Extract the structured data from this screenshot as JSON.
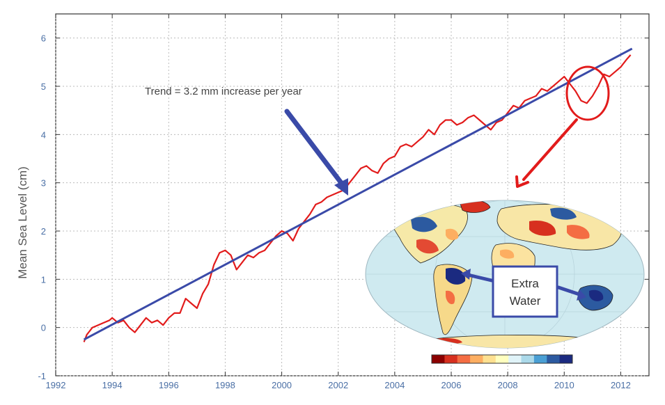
{
  "chart_data": {
    "type": "line",
    "ylabel": "Mean Sea Level (cm)",
    "xlim": [
      1992,
      2013
    ],
    "ylim": [
      -1,
      6.5
    ],
    "x_ticks": [
      1992,
      1994,
      1996,
      1998,
      2000,
      2002,
      2004,
      2006,
      2008,
      2010,
      2012
    ],
    "y_ticks": [
      -1,
      0,
      1,
      2,
      3,
      4,
      5,
      6
    ],
    "grid": true,
    "series": [
      {
        "values_x": [
          1993.0,
          1993.1,
          1993.3,
          1993.5,
          1993.7,
          1993.9,
          1994.0,
          1994.2,
          1994.4,
          1994.6,
          1994.8,
          1995.0,
          1995.2,
          1995.4,
          1995.6,
          1995.8,
          1996.0,
          1996.2,
          1996.4,
          1996.6,
          1996.8,
          1997.0,
          1997.2,
          1997.4,
          1997.6,
          1997.8,
          1998.0,
          1998.2,
          1998.4,
          1998.6,
          1998.8,
          1999.0,
          1999.2,
          1999.4,
          1999.6,
          1999.8,
          2000.0,
          2000.2,
          2000.4,
          2000.6,
          2000.8,
          2001.0,
          2001.2,
          2001.4,
          2001.6,
          2001.8,
          2002.0,
          2002.2,
          2002.4,
          2002.6,
          2002.8,
          2003.0,
          2003.2,
          2003.4,
          2003.6,
          2003.8,
          2004.0,
          2004.2,
          2004.4,
          2004.6,
          2004.8,
          2005.0,
          2005.2,
          2005.4,
          2005.6,
          2005.8,
          2006.0,
          2006.2,
          2006.4,
          2006.6,
          2006.8,
          2007.0,
          2007.2,
          2007.4,
          2007.6,
          2007.8,
          2008.0,
          2008.2,
          2008.4,
          2008.6,
          2008.8,
          2009.0,
          2009.2,
          2009.4,
          2009.6,
          2009.8,
          2010.0,
          2010.2,
          2010.4,
          2010.6,
          2010.8,
          2011.0,
          2011.2,
          2011.4,
          2011.6,
          2011.8,
          2012.0,
          2012.2,
          2012.35
        ],
        "values_y": [
          -0.3,
          -0.15,
          0.0,
          0.05,
          0.1,
          0.15,
          0.2,
          0.1,
          0.15,
          0.0,
          -0.1,
          0.05,
          0.2,
          0.1,
          0.15,
          0.05,
          0.2,
          0.3,
          0.3,
          0.6,
          0.5,
          0.4,
          0.7,
          0.9,
          1.3,
          1.55,
          1.6,
          1.5,
          1.2,
          1.35,
          1.5,
          1.45,
          1.55,
          1.6,
          1.75,
          1.9,
          2.0,
          1.95,
          1.8,
          2.05,
          2.2,
          2.35,
          2.55,
          2.6,
          2.7,
          2.75,
          2.8,
          2.85,
          3.0,
          3.15,
          3.3,
          3.35,
          3.25,
          3.2,
          3.4,
          3.5,
          3.55,
          3.75,
          3.8,
          3.75,
          3.85,
          3.95,
          4.1,
          4.0,
          4.2,
          4.3,
          4.3,
          4.2,
          4.25,
          4.35,
          4.4,
          4.3,
          4.2,
          4.1,
          4.25,
          4.3,
          4.45,
          4.6,
          4.55,
          4.7,
          4.75,
          4.8,
          4.95,
          4.9,
          5.0,
          5.1,
          5.2,
          5.05,
          4.9,
          4.7,
          4.65,
          4.8,
          5.0,
          5.25,
          5.2,
          5.3,
          5.4,
          5.55,
          5.65
        ],
        "color": "#e21b1b"
      },
      {
        "values_x": [
          1993.0,
          2012.4
        ],
        "values_y": [
          -0.25,
          5.78
        ],
        "color": "#3a4aa8"
      }
    ],
    "annotations": [
      {
        "text": "Trend = 3.2 mm increase per year",
        "anchor_x": 2002.15,
        "anchor_y": 2.85
      }
    ],
    "highlight": {
      "center_x": 2010.7,
      "center_y": 5.0,
      "color": "#e21b1b"
    },
    "inset": {
      "type": "map",
      "legend_text": [
        "Extra",
        "Water"
      ],
      "colorbar_colors": [
        "#8b0000",
        "#d7301f",
        "#f46d43",
        "#fdae61",
        "#fee090",
        "#ffffbf",
        "#e0f3f8",
        "#abd9e9",
        "#4a9fd4",
        "#2c5aa0",
        "#1b2a80"
      ]
    }
  }
}
